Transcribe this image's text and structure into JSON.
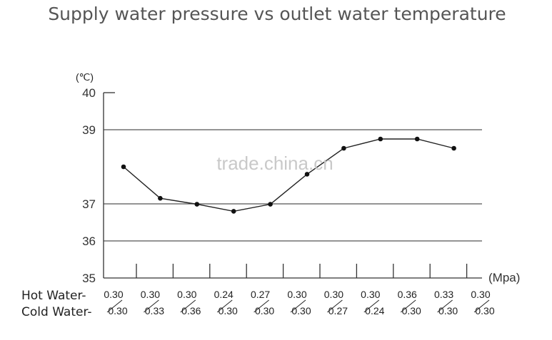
{
  "chart_data": {
    "type": "line",
    "title": "Supply water pressure vs outlet water temperature",
    "y_unit": "(℃)",
    "x_unit": "(Mpa)",
    "ylim": [
      35,
      40
    ],
    "yticks": [
      "35",
      "36",
      "37",
      "39",
      "40"
    ],
    "grid": true,
    "row_labels": [
      "Hot Water-",
      "Cold Water-"
    ],
    "hot_water": [
      "0.30",
      "0.30",
      "0.30",
      "0.24",
      "0.27",
      "0.30",
      "0.30",
      "0.30",
      "0.36",
      "0.33",
      "0.30"
    ],
    "cold_water": [
      "0.30",
      "0.33",
      "0.36",
      "0.30",
      "0.30",
      "0.30",
      "0.27",
      "0.24",
      "0.30",
      "0.30",
      "0.30"
    ],
    "series": [
      {
        "values": [
          38.0,
          37.15,
          36.99,
          36.8,
          36.99,
          37.8,
          38.5,
          38.75,
          38.75,
          38.5,
          null
        ]
      }
    ],
    "watermark": "trade.china.cn"
  }
}
